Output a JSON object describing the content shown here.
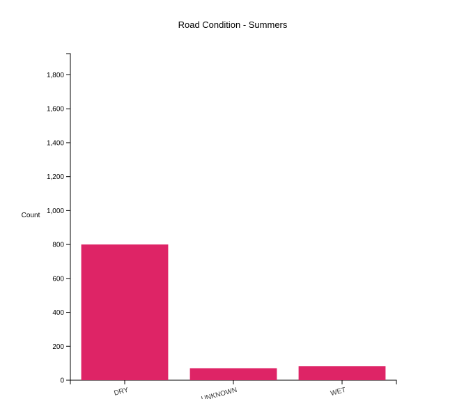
{
  "chart_data": {
    "type": "bar",
    "title": "Road Condition - Summers",
    "xlabel": "",
    "ylabel": "Count",
    "categories": [
      "DRY",
      "UNKNOWN",
      "WET"
    ],
    "values": [
      800,
      70,
      82
    ],
    "ylim": [
      0,
      1800
    ],
    "yticks": [
      0,
      200,
      400,
      600,
      800,
      1000,
      1200,
      1400,
      1600,
      1800
    ],
    "ytick_labels": [
      "0",
      "200",
      "400",
      "600",
      "800",
      "1,000",
      "1,200",
      "1,400",
      "1,600",
      "1,800"
    ],
    "grid": false,
    "legend": "none",
    "bar_color": "#de2466"
  }
}
